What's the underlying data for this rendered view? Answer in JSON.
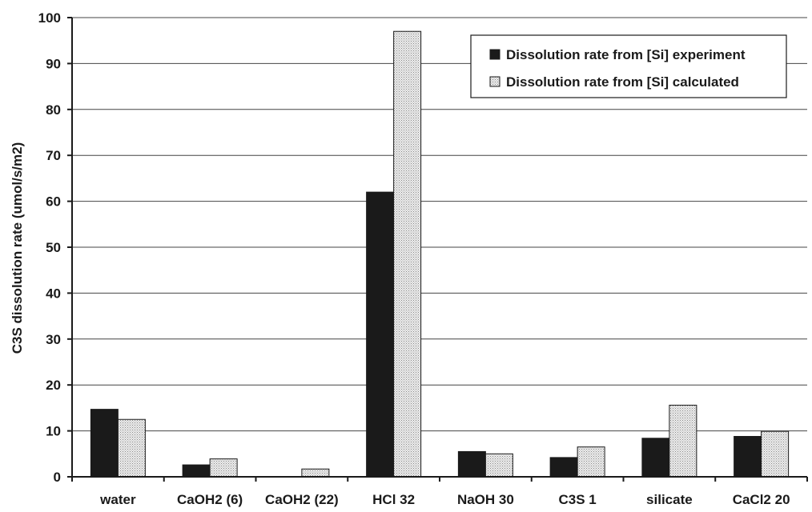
{
  "chart_data": {
    "type": "bar",
    "title": "",
    "xlabel": "",
    "ylabel": "C3S dissolution rate (umol/s/m2)",
    "ylim": [
      0,
      100
    ],
    "yticks": [
      0,
      10,
      20,
      30,
      40,
      50,
      60,
      70,
      80,
      90,
      100
    ],
    "grid": "horizontal",
    "legend_position": "top-right",
    "categories": [
      "water",
      "CaOH2 (6)",
      "CaOH2 (22)",
      "HCl 32",
      "NaOH 30",
      "C3S 1",
      "silicate",
      "CaCl2 20"
    ],
    "series": [
      {
        "name": "Dissolution rate from [Si] experiment",
        "fill": "solid",
        "color": "#1a1a1a",
        "values": [
          14.7,
          2.6,
          0,
          62.0,
          5.5,
          4.2,
          8.4,
          8.8
        ]
      },
      {
        "name": "Dissolution rate from [Si] calculated",
        "fill": "dotted",
        "color": "#dcdcdc",
        "values": [
          12.5,
          3.9,
          1.7,
          97.0,
          5.0,
          6.5,
          15.6,
          9.9
        ]
      }
    ]
  },
  "colors": {
    "background": "#ffffff",
    "axis": "#1a1a1a",
    "gridline": "#444444",
    "text": "#1a1a1a"
  }
}
